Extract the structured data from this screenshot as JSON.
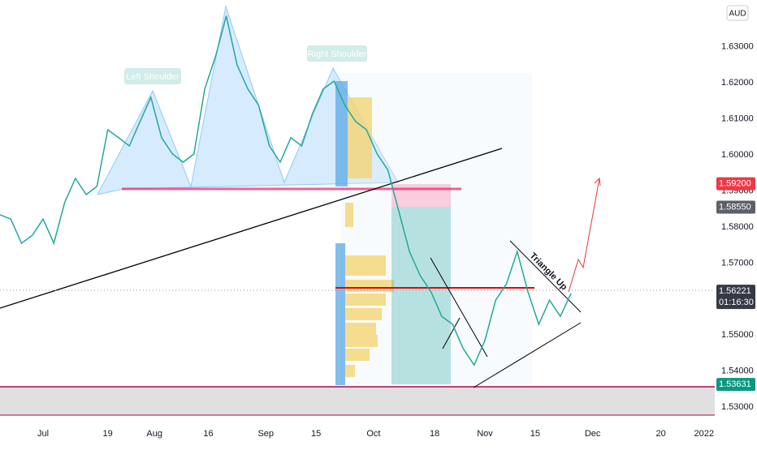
{
  "chart_data": {
    "type": "line",
    "x": [
      -12,
      -9,
      -6,
      -3,
      0,
      3,
      6,
      9,
      12,
      15,
      18,
      21,
      24,
      27,
      30,
      33,
      36,
      39,
      42,
      45,
      48,
      51,
      54,
      57,
      60,
      63,
      66,
      69,
      72,
      75,
      78,
      81,
      84,
      87,
      90,
      93,
      96,
      99,
      102,
      105,
      108,
      111,
      114,
      117,
      120,
      123,
      126,
      129,
      132,
      135,
      138,
      141,
      144,
      147
    ],
    "series": [
      {
        "color": "#26a69a",
        "values": [
          1.5834,
          1.5822,
          1.5755,
          1.5777,
          1.5822,
          1.5755,
          1.5868,
          1.5935,
          1.589,
          1.5913,
          1.607,
          1.6048,
          1.6025,
          1.6093,
          1.616,
          1.6048,
          1.6003,
          1.598,
          1.6003,
          1.6183,
          1.6273,
          1.6386,
          1.625,
          1.6183,
          1.6138,
          1.6025,
          1.598,
          1.6048,
          1.6025,
          1.6115,
          1.6183,
          1.6205,
          1.6138,
          1.6093,
          1.607,
          1.6003,
          1.5958,
          1.5845,
          1.5732,
          1.5665,
          1.562,
          1.5552,
          1.553,
          1.5462,
          1.5417,
          1.5485,
          1.5597,
          1.5642,
          1.5732,
          1.562,
          1.553,
          1.5597,
          1.5552,
          1.5616
        ]
      }
    ],
    "xlim": [
      -12,
      187
    ],
    "xticks": [
      {
        "value": 0,
        "label": "Jul"
      },
      {
        "value": 18,
        "label": "19"
      },
      {
        "value": 31,
        "label": "Aug"
      },
      {
        "value": 46,
        "label": "16"
      },
      {
        "value": 62,
        "label": "Sep"
      },
      {
        "value": 76,
        "label": "15"
      },
      {
        "value": 92,
        "label": "Oct"
      },
      {
        "value": 109,
        "label": "18"
      },
      {
        "value": 123,
        "label": "Nov"
      },
      {
        "value": 137,
        "label": "15"
      },
      {
        "value": 153,
        "label": "Dec"
      },
      {
        "value": 172,
        "label": "20"
      },
      {
        "value": 184,
        "label": "2022"
      }
    ],
    "ylim": [
      1.526,
      1.643
    ],
    "yticks": [
      {
        "value": 1.53,
        "label": "1.53000"
      },
      {
        "value": 1.54,
        "label": "1.54000"
      },
      {
        "value": 1.55,
        "label": "1.55000"
      },
      {
        "value": 1.56,
        "label": "1.56000"
      },
      {
        "value": 1.57,
        "label": "1.57000"
      },
      {
        "value": 1.58,
        "label": "1.58000"
      },
      {
        "value": 1.59,
        "label": "1.59000"
      },
      {
        "value": 1.6,
        "label": "1.60000"
      },
      {
        "value": 1.61,
        "label": "1.61000"
      },
      {
        "value": 1.62,
        "label": "1.62000"
      },
      {
        "value": 1.63,
        "label": "1.63000"
      }
    ],
    "grid": false,
    "currency": "AUD",
    "price_labels": [
      {
        "value": 1.592,
        "label": "1.59200",
        "color": "#f23645"
      },
      {
        "value": 1.5855,
        "label": "1.58550",
        "color": "#5d606b"
      },
      {
        "value": 1.56221,
        "label": "1.56221",
        "color": "#363a45"
      },
      {
        "value": 1.53631,
        "label": "1.53631",
        "color": "#089981"
      }
    ],
    "countdown": "01:16:30",
    "annotations": [
      "Left Shoulder",
      "Right Shoulder",
      "Triangle Up"
    ]
  }
}
